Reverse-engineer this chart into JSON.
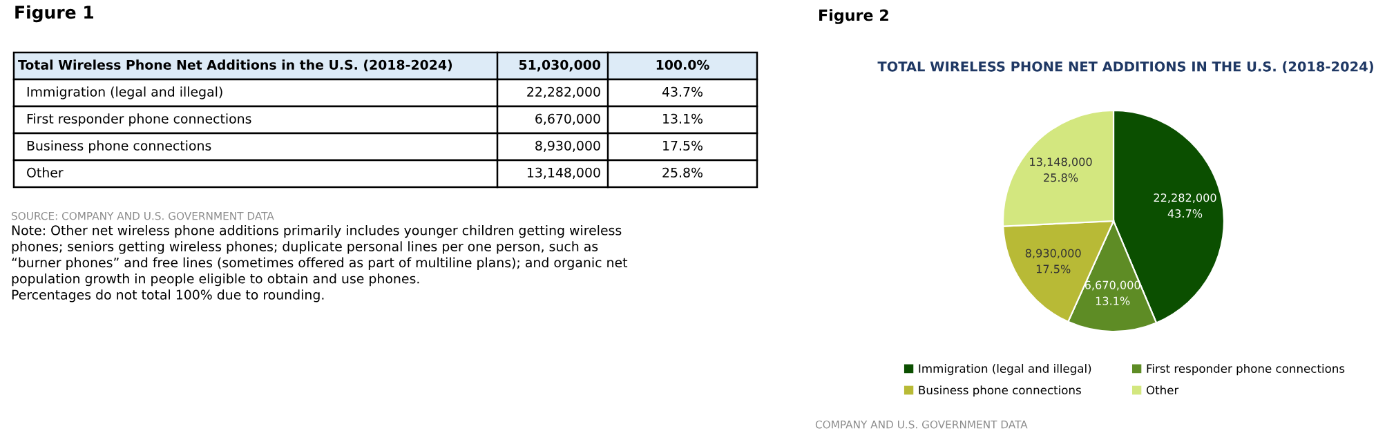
{
  "chart_data": [
    {
      "type": "other",
      "title": "Figure 1",
      "subtitle": "Total Wireless Phone Net Additions in the U.S. (2018-2024)",
      "categories": [
        "Immigration (legal and illegal)",
        "First responder phone connections",
        "Business phone connections",
        "Other"
      ],
      "series": [
        {
          "values": [
            22282000,
            6670000,
            8930000,
            13148000
          ],
          "value_labels": [
            "22,282,000",
            "6,670,000",
            "8,930,000",
            "13,148,000"
          ]
        },
        {
          "values": [
            43.7,
            13.1,
            17.5,
            25.8
          ],
          "value_labels": [
            "43.7%",
            "13.1%",
            "17.5%",
            "25.8%"
          ]
        }
      ],
      "totals": [
        "51,030,000",
        "100.0%"
      ],
      "annotations": [
        "SOURCE: COMPANY AND U.S. GOVERNMENT DATA",
        "Note: Other net wireless phone additions primarily includes younger children getting wireless\nphones; seniors getting wireless phones; duplicate personal lines per one person, such as\n“burner phones” and free lines (sometimes offered as part of multiline plans); and organic net\npopulation growth in people eligible to obtain and use phones.\nPercentages do not total 100% due to rounding."
      ]
    },
    {
      "type": "pie",
      "title": "TOTAL WIRELESS PHONE NET ADDITIONS IN THE U.S. (2018-2024)",
      "categories": [
        "Immigration (legal and illegal)",
        "First responder phone connections",
        "Business phone connections",
        "Other"
      ],
      "values": [
        22282000,
        6670000,
        8930000,
        13148000
      ],
      "value_labels": [
        "22,282,000\n43.7%",
        "6,670,000\n13.1%",
        "8,930,000\n17.5%",
        "13,148,000\n25.8%"
      ],
      "colors": [
        "#0b4f00",
        "#5e8c25",
        "#b8ba36",
        "#d3e77f"
      ],
      "legend": "bottom",
      "annotations": [
        "Figure 2",
        "COMPANY AND U.S. GOVERNMENT DATA"
      ]
    }
  ]
}
